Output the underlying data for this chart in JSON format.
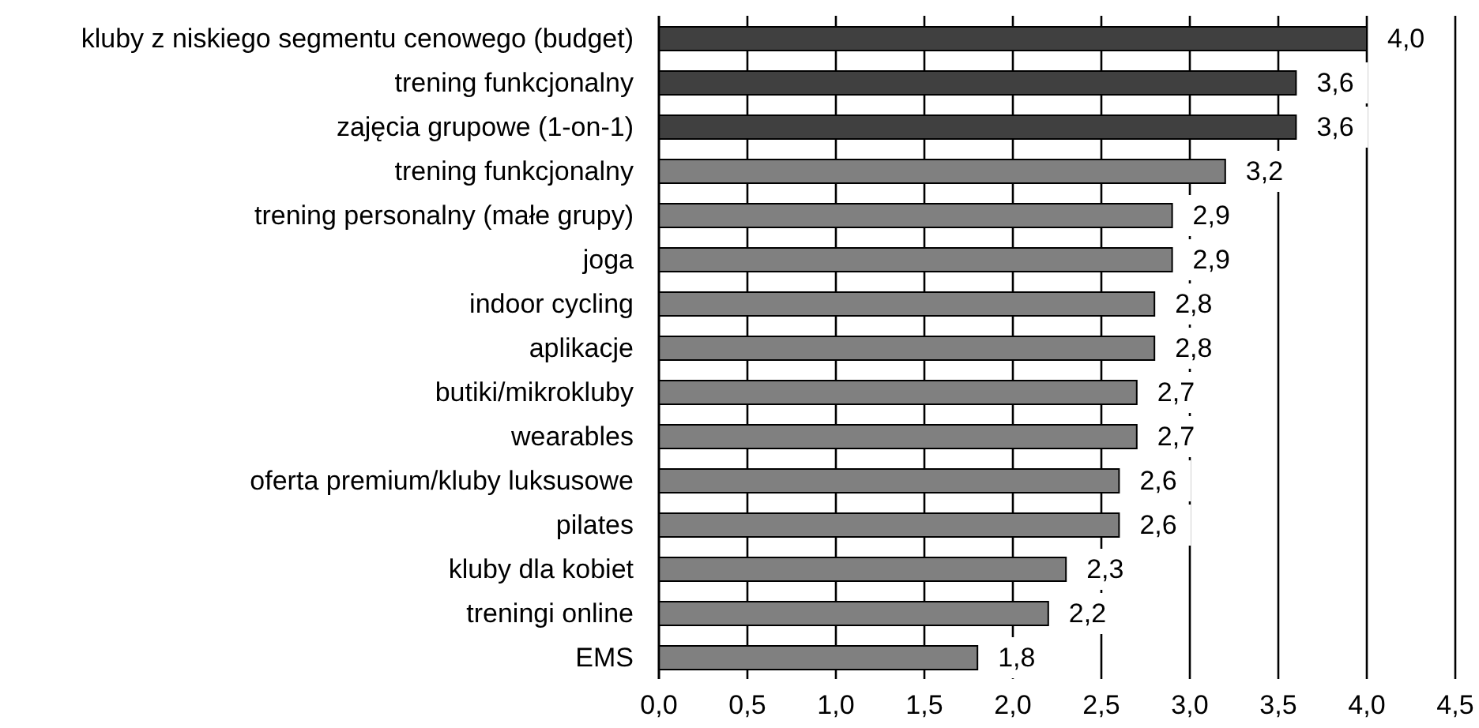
{
  "chart_data": {
    "type": "bar",
    "orientation": "horizontal",
    "categories": [
      "kluby z niskiego segmentu cenowego (budget)",
      "trening funkcjonalny",
      "zajęcia grupowe (1-on-1)",
      "trening funkcjonalny",
      "trening personalny (małe grupy)",
      "joga",
      "indoor cycling",
      "aplikacje",
      "butiki/mikrokluby",
      "wearables",
      "oferta premium/kluby luksusowe",
      "pilates",
      "kluby dla kobiet",
      "treningi online",
      "EMS"
    ],
    "values": [
      4.0,
      3.6,
      3.6,
      3.2,
      2.9,
      2.9,
      2.8,
      2.8,
      2.7,
      2.7,
      2.6,
      2.6,
      2.3,
      2.2,
      1.8
    ],
    "colors": [
      "#404040",
      "#404040",
      "#404040",
      "#808080",
      "#808080",
      "#808080",
      "#808080",
      "#808080",
      "#808080",
      "#808080",
      "#808080",
      "#808080",
      "#808080",
      "#808080",
      "#808080"
    ],
    "value_labels": [
      "4,0",
      "3,6",
      "3,6",
      "3,2",
      "2,9",
      "2,9",
      "2,8",
      "2,8",
      "2,7",
      "2,7",
      "2,6",
      "2,6",
      "2,3",
      "2,2",
      "1,8"
    ],
    "xlim": [
      0,
      4.5
    ],
    "xticks": [
      {
        "value": 0,
        "label": "0,0"
      },
      {
        "value": 0.5,
        "label": "0,5"
      },
      {
        "value": 1,
        "label": "1,0"
      },
      {
        "value": 1.5,
        "label": "1,5"
      },
      {
        "value": 2,
        "label": "2,0"
      },
      {
        "value": 2.5,
        "label": "2,5"
      },
      {
        "value": 3,
        "label": "3,0"
      },
      {
        "value": 3.5,
        "label": "3,5"
      },
      {
        "value": 4,
        "label": "4,0"
      },
      {
        "value": 4.5,
        "label": "4,5"
      }
    ],
    "grid": "x"
  }
}
